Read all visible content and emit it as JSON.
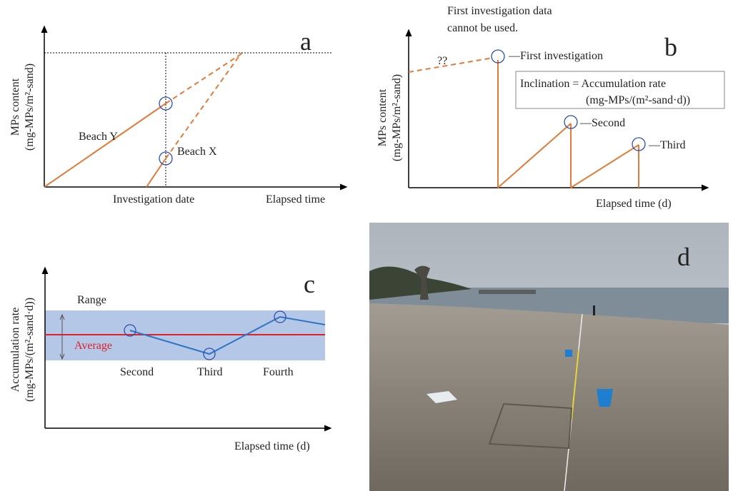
{
  "panel_a": {
    "label": "a",
    "y_axis": [
      "MPs content",
      "(mg-MPs/m²-sand)"
    ],
    "beach_y": "Beach Y",
    "beach_x": "Beach X",
    "x_label": "Investigation date",
    "x_axis": "Elapsed time"
  },
  "panel_b": {
    "label": "b",
    "note": [
      "First investigation data",
      "cannot be used."
    ],
    "unknown": "??",
    "first": "—First investigation",
    "box": [
      "Inclination = Accumulation rate",
      "(mg-MPs/(m²-sand·d))"
    ],
    "second": "—Second",
    "third": "—Third",
    "x_axis": "Elapsed time (d)",
    "y_axis": [
      "MPs content",
      "(mg-MPs/m²-sand)"
    ]
  },
  "panel_c": {
    "label": "c",
    "y_axis": [
      "Accumulation rate",
      "(mg-MPs/(m²-sand·d))"
    ],
    "range": "Range",
    "average": "Average",
    "points": [
      "Second",
      "Third",
      "Fourth"
    ],
    "x_axis": "Elapsed time (d)"
  },
  "panel_d": {
    "label": "d"
  }
}
